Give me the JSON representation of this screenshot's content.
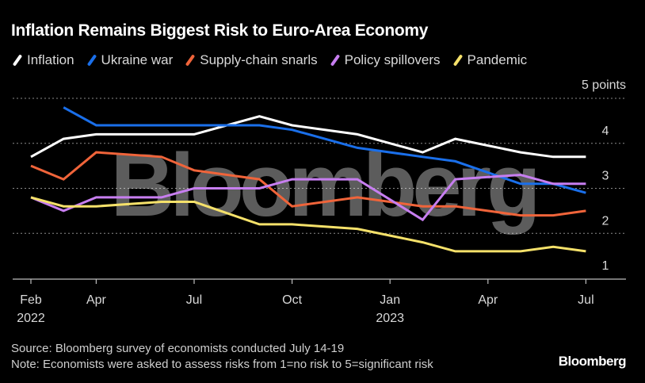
{
  "chart_data": {
    "type": "line",
    "title": "Inflation Remains Biggest Risk to Euro-Area Economy",
    "xlabel": "",
    "ylabel": "",
    "unit_label": "5 points",
    "ylim": [
      1,
      5
    ],
    "yticks": [
      "1",
      "2",
      "3",
      "4"
    ],
    "grid": true,
    "legend_position": "top-left",
    "x_ticks": [
      {
        "month_index": 0,
        "label": "Feb",
        "sublabel": "2022"
      },
      {
        "month_index": 2,
        "label": "Apr",
        "sublabel": ""
      },
      {
        "month_index": 5,
        "label": "Jul",
        "sublabel": ""
      },
      {
        "month_index": 8,
        "label": "Oct",
        "sublabel": ""
      },
      {
        "month_index": 11,
        "label": "Jan",
        "sublabel": "2023"
      },
      {
        "month_index": 14,
        "label": "Apr",
        "sublabel": ""
      },
      {
        "month_index": 17,
        "label": "Jul",
        "sublabel": ""
      }
    ],
    "x": [
      "Feb 2022",
      "Mar 2022",
      "Apr 2022",
      "Jun 2022",
      "Jul 2022",
      "Sep 2022",
      "Oct 2022",
      "Dec 2022",
      "Feb 2023",
      "Mar 2023",
      "May 2023",
      "Jun 2023",
      "Jul 2023"
    ],
    "x_month_index": [
      0,
      1,
      2,
      4,
      5,
      7,
      8,
      10,
      12,
      13,
      15,
      16,
      17
    ],
    "series": [
      {
        "name": "Inflation",
        "color": "#ffffff",
        "values": [
          3.7,
          4.1,
          4.2,
          4.2,
          4.2,
          4.6,
          4.4,
          4.2,
          3.8,
          4.1,
          3.8,
          3.7,
          3.7
        ]
      },
      {
        "name": "Ukraine war",
        "color": "#1a6fea",
        "values": [
          null,
          4.8,
          4.4,
          4.4,
          4.4,
          4.4,
          4.3,
          3.9,
          3.7,
          3.6,
          3.1,
          3.1,
          2.9
        ]
      },
      {
        "name": "Supply-chain snarls",
        "color": "#f0643a",
        "values": [
          3.5,
          3.2,
          3.8,
          3.7,
          3.4,
          3.2,
          2.6,
          2.8,
          2.6,
          2.6,
          2.4,
          2.4,
          2.5
        ]
      },
      {
        "name": "Policy spillovers",
        "color": "#c77ef0",
        "values": [
          2.8,
          2.5,
          2.8,
          2.8,
          3.0,
          3.0,
          3.2,
          3.2,
          2.3,
          3.2,
          3.3,
          3.1,
          3.1
        ]
      },
      {
        "name": "Pandemic",
        "color": "#f5e16a",
        "values": [
          2.8,
          2.6,
          2.6,
          2.7,
          2.7,
          2.2,
          2.2,
          2.1,
          1.8,
          1.6,
          1.6,
          1.7,
          1.6
        ]
      }
    ],
    "watermark": "Bloomberg"
  },
  "footer": {
    "source": "Source: Bloomberg survey of economists conducted July 14-19",
    "note": "Note: Economists were asked to assess risks from 1=no risk to 5=significant risk",
    "brand": "Bloomberg"
  }
}
